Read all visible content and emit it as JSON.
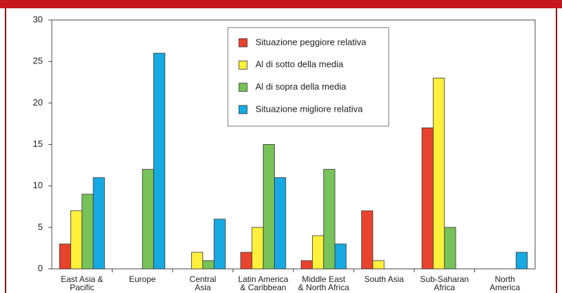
{
  "chart_data": {
    "type": "bar",
    "categories": [
      "East Asia &\nPacific",
      "Europe",
      "Central\nAsia",
      "Latin America\n& Caribbean",
      "Middle East\n& North Africa",
      "South Asia",
      "Sub-Saharan\nAfrica",
      "North\nAmerica"
    ],
    "series": [
      {
        "name": "Situazione peggiore relativa",
        "color": "#e8432e",
        "values": [
          3,
          0,
          0,
          2,
          1,
          7,
          17,
          0
        ]
      },
      {
        "name": "Al di sotto della media",
        "color": "#fff03c",
        "values": [
          7,
          0,
          2,
          5,
          4,
          1,
          23,
          0
        ]
      },
      {
        "name": "Al di sopra della media",
        "color": "#78c25a",
        "values": [
          9,
          12,
          1,
          15,
          12,
          0,
          5,
          0
        ]
      },
      {
        "name": "Situazione migliore relativa",
        "color": "#17a9e1",
        "values": [
          11,
          26,
          6,
          11,
          3,
          0,
          0,
          2
        ]
      }
    ],
    "ylim": [
      0,
      30
    ],
    "yticks": [
      0,
      5,
      10,
      15,
      20,
      25,
      30
    ],
    "grid": false,
    "legend": "top"
  }
}
